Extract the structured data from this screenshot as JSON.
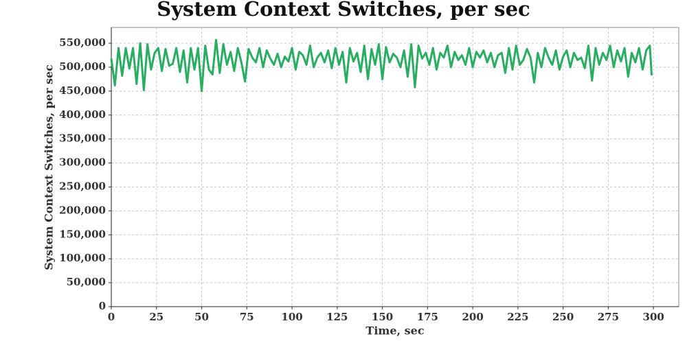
{
  "chart_data": {
    "type": "line",
    "title": "System Context Switches, per sec",
    "xlabel": "Time, sec",
    "ylabel": "System Context Switches, per sec",
    "x": [
      0,
      2,
      4,
      6,
      8,
      10,
      12,
      14,
      16,
      18,
      20,
      22,
      24,
      26,
      28,
      30,
      32,
      34,
      36,
      38,
      40,
      42,
      44,
      46,
      48,
      50,
      52,
      54,
      56,
      58,
      60,
      62,
      64,
      66,
      68,
      70,
      72,
      74,
      76,
      78,
      80,
      82,
      84,
      86,
      88,
      90,
      92,
      94,
      96,
      98,
      100,
      102,
      104,
      106,
      108,
      110,
      112,
      114,
      116,
      118,
      120,
      122,
      124,
      126,
      128,
      130,
      132,
      134,
      136,
      138,
      140,
      142,
      144,
      146,
      148,
      150,
      152,
      154,
      156,
      158,
      160,
      162,
      164,
      166,
      168,
      170,
      172,
      174,
      176,
      178,
      180,
      182,
      184,
      186,
      188,
      190,
      192,
      194,
      196,
      198,
      200,
      202,
      204,
      206,
      208,
      210,
      212,
      214,
      216,
      218,
      220,
      222,
      224,
      226,
      228,
      230,
      232,
      234,
      236,
      238,
      240,
      242,
      244,
      246,
      248,
      250,
      252,
      254,
      256,
      258,
      260,
      262,
      264,
      266,
      268,
      270,
      272,
      274,
      276,
      278,
      280,
      282,
      284,
      286,
      288,
      290,
      292,
      294,
      296,
      298,
      299
    ],
    "series": [
      {
        "name": "System Context Switches",
        "color": "#27ae60",
        "values": [
          518000,
          462000,
          540000,
          482000,
          540000,
          497000,
          540000,
          465000,
          550000,
          452000,
          548000,
          495000,
          530000,
          540000,
          492000,
          538000,
          503000,
          507000,
          540000,
          490000,
          535000,
          468000,
          540000,
          495000,
          540000,
          450000,
          545000,
          495000,
          485000,
          557000,
          488000,
          548000,
          505000,
          532000,
          492000,
          540000,
          510000,
          470000,
          538000,
          520000,
          510000,
          540000,
          500000,
          535000,
          518000,
          505000,
          528000,
          500000,
          522000,
          512000,
          540000,
          495000,
          532000,
          525000,
          505000,
          545000,
          500000,
          520000,
          530000,
          510000,
          535000,
          498000,
          540000,
          505000,
          532000,
          468000,
          540000,
          512000,
          530000,
          490000,
          545000,
          475000,
          538000,
          505000,
          548000,
          475000,
          542000,
          510000,
          528000,
          520000,
          500000,
          535000,
          480000,
          548000,
          458000,
          545000,
          518000,
          530000,
          505000,
          540000,
          495000,
          530000,
          520000,
          545000,
          500000,
          532000,
          515000,
          525000,
          505000,
          540000,
          500000,
          532000,
          520000,
          535000,
          510000,
          530000,
          500000,
          525000,
          530000,
          488000,
          540000,
          495000,
          545000,
          505000,
          515000,
          538000,
          520000,
          468000,
          530000,
          500000,
          540000,
          520000,
          505000,
          535000,
          495000,
          522000,
          535000,
          500000,
          530000,
          515000,
          520000,
          498000,
          545000,
          472000,
          540000,
          505000,
          530000,
          515000,
          545000,
          500000,
          535000,
          512000,
          540000,
          480000,
          530000,
          510000,
          540000,
          495000,
          535000,
          545000,
          483000
        ]
      }
    ],
    "xlim": [
      0,
      314
    ],
    "ylim": [
      0,
      583000
    ],
    "xticks": [
      0,
      25,
      50,
      75,
      100,
      125,
      150,
      175,
      200,
      225,
      250,
      275,
      300
    ],
    "yticks": [
      0,
      {
        "value": 50000,
        "label": "50,000"
      },
      {
        "value": 100000,
        "label": "100,000"
      },
      {
        "value": 150000,
        "label": "150,000"
      },
      {
        "value": 200000,
        "label": "200,000"
      },
      {
        "value": 250000,
        "label": "250,000"
      },
      {
        "value": 300000,
        "label": "300,000"
      },
      {
        "value": 350000,
        "label": "350,000"
      },
      {
        "value": 400000,
        "label": "400,000"
      },
      {
        "value": 450000,
        "label": "450,000"
      },
      {
        "value": 500000,
        "label": "500,000"
      },
      {
        "value": 550000,
        "label": "550,000"
      }
    ],
    "grid": true
  }
}
